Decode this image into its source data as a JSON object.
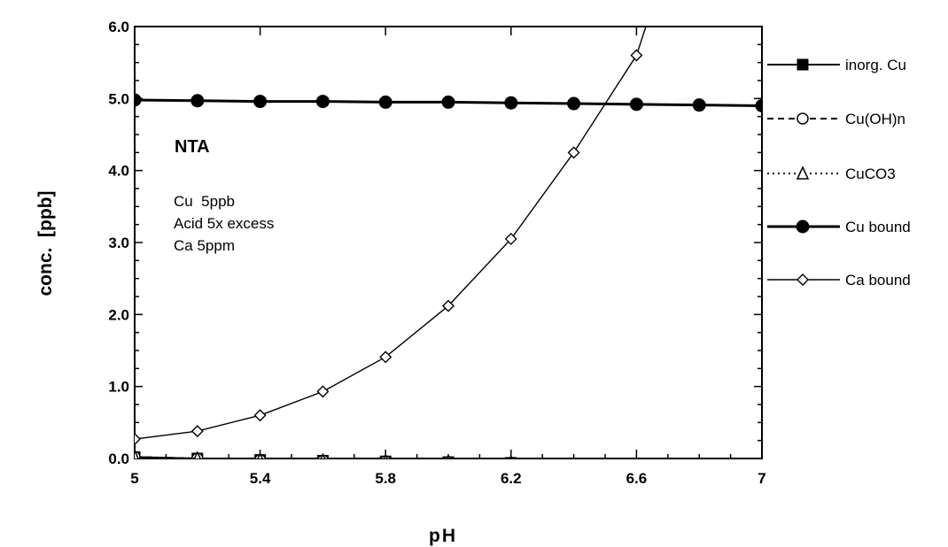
{
  "chart_data": {
    "type": "line",
    "title": "",
    "xlabel": "pH",
    "ylabel": "conc.  [ppb]",
    "xlim": [
      5,
      7
    ],
    "ylim": [
      0,
      6
    ],
    "x_ticks": [
      "5",
      "5.4",
      "5.8",
      "6.2",
      "6.6",
      "7"
    ],
    "y_ticks": [
      "0.0",
      "1.0",
      "2.0",
      "3.0",
      "4.0",
      "5.0",
      "6.0"
    ],
    "annotation": {
      "title": "NTA",
      "lines": [
        "Cu  5ppb",
        "Acid 5x excess",
        "Ca 5ppm"
      ]
    },
    "legend_position": "right",
    "series": [
      {
        "name": "inorg. Cu",
        "marker": "square-filled",
        "line": "solid",
        "x": [
          5.0,
          5.2,
          5.4,
          5.6,
          5.8,
          6.0,
          6.2,
          6.4,
          6.6,
          6.8,
          7.0
        ],
        "y": [
          0.02,
          0.0,
          -0.02,
          -0.03,
          -0.04,
          -0.05,
          -0.06,
          -0.07,
          -0.08,
          -0.08,
          -0.09
        ]
      },
      {
        "name": "Cu(OH)n",
        "marker": "circle-open",
        "line": "dashed",
        "x": [
          5.0,
          5.2,
          5.4,
          5.6,
          5.8,
          6.0,
          6.2,
          6.4,
          6.6,
          6.8,
          7.0
        ],
        "y": [
          0.02,
          0.0,
          -0.02,
          -0.03,
          -0.04,
          -0.05,
          -0.06,
          -0.07,
          -0.08,
          -0.08,
          -0.09
        ]
      },
      {
        "name": "CuCO3",
        "marker": "triangle-open",
        "line": "dotted",
        "x": [
          5.0,
          5.2,
          5.4,
          5.6,
          5.8,
          6.0,
          6.2,
          6.4,
          6.6,
          6.8,
          7.0
        ],
        "y": [
          0.02,
          0.0,
          -0.02,
          -0.03,
          -0.04,
          -0.05,
          -0.06,
          -0.07,
          -0.08,
          -0.08,
          -0.09
        ]
      },
      {
        "name": "Cu bound",
        "marker": "circle-filled",
        "line": "solid-thick",
        "x": [
          5.0,
          5.2,
          5.4,
          5.6,
          5.8,
          6.0,
          6.2,
          6.4,
          6.6,
          6.8,
          7.0
        ],
        "y": [
          4.98,
          4.97,
          4.96,
          4.96,
          4.95,
          4.95,
          4.94,
          4.93,
          4.92,
          4.91,
          4.9
        ]
      },
      {
        "name": "Ca bound",
        "marker": "diamond-open",
        "line": "solid-thin",
        "x": [
          5.0,
          5.2,
          5.4,
          5.6,
          5.8,
          6.0,
          6.2,
          6.4,
          6.6,
          6.63
        ],
        "y": [
          0.27,
          0.38,
          0.6,
          0.93,
          1.41,
          2.12,
          3.05,
          4.25,
          5.6,
          6.0
        ]
      }
    ]
  }
}
